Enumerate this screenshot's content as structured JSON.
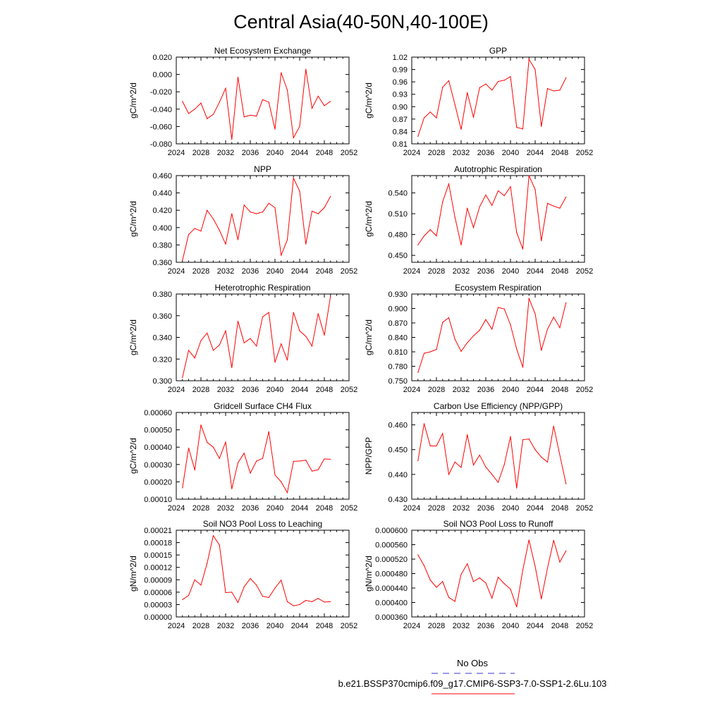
{
  "figure": {
    "title": "Central Asia(40-50N,40-100E)",
    "line_color": "#ff0000",
    "obs_color": "#3333cc"
  },
  "legend": {
    "obs_label": "No Obs",
    "model_label": "b.e21.BSSP370cmip6.f09_g17.CMIP6-SSP3-7.0-SSP1-2.6Lu.103"
  },
  "chart_data": [
    {
      "type": "line",
      "title": "Net Ecosystem Exchange",
      "ylabel": "gC/m^2/d",
      "xlim": [
        2024,
        2052
      ],
      "xticks": [
        2024,
        2028,
        2032,
        2036,
        2040,
        2044,
        2048,
        2052
      ],
      "ylim": [
        -0.08,
        0.02
      ],
      "yticks": [
        "-0.080",
        "-0.060",
        "-0.040",
        "-0.020",
        "0.000",
        "0.020"
      ],
      "x": [
        2025,
        2026,
        2027,
        2028,
        2029,
        2030,
        2031,
        2032,
        2033,
        2034,
        2035,
        2036,
        2037,
        2038,
        2039,
        2040,
        2041,
        2042,
        2043,
        2044,
        2045,
        2046,
        2047,
        2048,
        2049
      ],
      "values": [
        -0.031,
        -0.045,
        -0.04,
        -0.033,
        -0.051,
        -0.046,
        -0.032,
        -0.016,
        -0.075,
        -0.003,
        -0.049,
        -0.047,
        -0.048,
        -0.029,
        -0.032,
        -0.063,
        0.002,
        -0.018,
        -0.073,
        -0.06,
        0.006,
        -0.039,
        -0.025,
        -0.036,
        -0.031
      ]
    },
    {
      "type": "line",
      "title": "GPP",
      "ylabel": "gC/m^2/d",
      "xlim": [
        2024,
        2052
      ],
      "xticks": [
        2024,
        2028,
        2032,
        2036,
        2040,
        2044,
        2048,
        2052
      ],
      "ylim": [
        0.81,
        1.02
      ],
      "yticks": [
        "0.81",
        "0.84",
        "0.87",
        "0.90",
        "0.93",
        "0.96",
        "0.99",
        "1.02"
      ],
      "x": [
        2025,
        2026,
        2027,
        2028,
        2029,
        2030,
        2031,
        2032,
        2033,
        2034,
        2035,
        2036,
        2037,
        2038,
        2039,
        2040,
        2041,
        2042,
        2043,
        2044,
        2045,
        2046,
        2047,
        2048,
        2049
      ],
      "values": [
        0.828,
        0.873,
        0.887,
        0.873,
        0.947,
        0.963,
        0.905,
        0.845,
        0.934,
        0.874,
        0.946,
        0.955,
        0.94,
        0.961,
        0.964,
        0.973,
        0.85,
        0.846,
        1.015,
        0.99,
        0.852,
        0.944,
        0.938,
        0.94,
        0.97
      ]
    },
    {
      "type": "line",
      "title": "NPP",
      "ylabel": "gC/m^2/d",
      "xlim": [
        2024,
        2052
      ],
      "xticks": [
        2024,
        2028,
        2032,
        2036,
        2040,
        2044,
        2048,
        2052
      ],
      "ylim": [
        0.36,
        0.46
      ],
      "yticks": [
        "0.360",
        "0.380",
        "0.400",
        "0.420",
        "0.440",
        "0.460"
      ],
      "x": [
        2025,
        2026,
        2027,
        2028,
        2029,
        2030,
        2031,
        2032,
        2033,
        2034,
        2035,
        2036,
        2037,
        2038,
        2039,
        2040,
        2041,
        2042,
        2043,
        2044,
        2045,
        2046,
        2047,
        2048,
        2049
      ],
      "values": [
        0.362,
        0.392,
        0.399,
        0.396,
        0.42,
        0.41,
        0.397,
        0.381,
        0.416,
        0.386,
        0.426,
        0.418,
        0.416,
        0.418,
        0.428,
        0.423,
        0.368,
        0.386,
        0.457,
        0.442,
        0.381,
        0.419,
        0.416,
        0.423,
        0.436
      ]
    },
    {
      "type": "line",
      "title": "Autotrophic Respiration",
      "ylabel": "gC/m^2/d",
      "xlim": [
        2024,
        2052
      ],
      "xticks": [
        2024,
        2028,
        2032,
        2036,
        2040,
        2044,
        2048,
        2052
      ],
      "ylim": [
        0.44,
        0.565
      ],
      "yticks": [
        "0.450",
        "0.480",
        "0.510",
        "0.540"
      ],
      "x": [
        2025,
        2026,
        2027,
        2028,
        2029,
        2030,
        2031,
        2032,
        2033,
        2034,
        2035,
        2036,
        2037,
        2038,
        2039,
        2040,
        2041,
        2042,
        2043,
        2044,
        2045,
        2046,
        2047,
        2048,
        2049
      ],
      "values": [
        0.465,
        0.478,
        0.487,
        0.478,
        0.527,
        0.553,
        0.505,
        0.465,
        0.518,
        0.49,
        0.52,
        0.537,
        0.522,
        0.543,
        0.536,
        0.549,
        0.483,
        0.459,
        0.565,
        0.545,
        0.471,
        0.525,
        0.521,
        0.518,
        0.534
      ]
    },
    {
      "type": "line",
      "title": "Heterotrophic Respiration",
      "ylabel": "gC/m^2/d",
      "xlim": [
        2024,
        2052
      ],
      "xticks": [
        2024,
        2028,
        2032,
        2036,
        2040,
        2044,
        2048,
        2052
      ],
      "ylim": [
        0.3,
        0.38
      ],
      "yticks": [
        "0.300",
        "0.320",
        "0.340",
        "0.360",
        "0.380"
      ],
      "x": [
        2025,
        2026,
        2027,
        2028,
        2029,
        2030,
        2031,
        2032,
        2033,
        2034,
        2035,
        2036,
        2037,
        2038,
        2039,
        2040,
        2041,
        2042,
        2043,
        2044,
        2045,
        2046,
        2047,
        2048,
        2049
      ],
      "values": [
        0.303,
        0.328,
        0.321,
        0.337,
        0.344,
        0.328,
        0.333,
        0.346,
        0.312,
        0.355,
        0.335,
        0.339,
        0.332,
        0.359,
        0.363,
        0.317,
        0.334,
        0.319,
        0.363,
        0.346,
        0.341,
        0.332,
        0.362,
        0.342,
        0.378
      ]
    },
    {
      "type": "line",
      "title": "Ecosystem Respiration",
      "ylabel": "gC/m^2/d",
      "xlim": [
        2024,
        2052
      ],
      "xticks": [
        2024,
        2028,
        2032,
        2036,
        2040,
        2044,
        2048,
        2052
      ],
      "ylim": [
        0.75,
        0.93
      ],
      "yticks": [
        "0.750",
        "0.780",
        "0.810",
        "0.840",
        "0.870",
        "0.900",
        "0.930"
      ],
      "x": [
        2025,
        2026,
        2027,
        2028,
        2029,
        2030,
        2031,
        2032,
        2033,
        2034,
        2035,
        2036,
        2037,
        2038,
        2039,
        2040,
        2041,
        2042,
        2043,
        2044,
        2045,
        2046,
        2047,
        2048,
        2049
      ],
      "values": [
        0.767,
        0.807,
        0.81,
        0.815,
        0.871,
        0.881,
        0.836,
        0.811,
        0.829,
        0.843,
        0.855,
        0.877,
        0.857,
        0.902,
        0.899,
        0.866,
        0.816,
        0.778,
        0.921,
        0.889,
        0.813,
        0.857,
        0.882,
        0.86,
        0.912
      ]
    },
    {
      "type": "line",
      "title": "Gridcell Surface CH4 Flux",
      "ylabel": "gC/m^2/d",
      "xlim": [
        2024,
        2052
      ],
      "xticks": [
        2024,
        2028,
        2032,
        2036,
        2040,
        2044,
        2048,
        2052
      ],
      "ylim": [
        0.0001,
        0.0006
      ],
      "yticks": [
        "0.00010",
        "0.00020",
        "0.00030",
        "0.00040",
        "0.00050",
        "0.00060"
      ],
      "x": [
        2025,
        2026,
        2027,
        2028,
        2029,
        2030,
        2031,
        2032,
        2033,
        2034,
        2035,
        2036,
        2037,
        2038,
        2039,
        2040,
        2041,
        2042,
        2043,
        2044,
        2045,
        2046,
        2047,
        2048,
        2049
      ],
      "values": [
        0.000165,
        0.000395,
        0.000268,
        0.000528,
        0.000428,
        0.0004,
        0.000335,
        0.00043,
        0.00016,
        0.00031,
        0.000365,
        0.00025,
        0.00032,
        0.000335,
        0.00049,
        0.00024,
        0.0002,
        0.000138,
        0.000318,
        0.00032,
        0.000325,
        0.000262,
        0.00027,
        0.000332,
        0.00033
      ]
    },
    {
      "type": "line",
      "title": "Carbon Use Efficiency (NPP/GPP)",
      "ylabel": "NPP/GPP",
      "xlim": [
        2024,
        2052
      ],
      "xticks": [
        2024,
        2028,
        2032,
        2036,
        2040,
        2044,
        2048,
        2052
      ],
      "ylim": [
        0.43,
        0.465
      ],
      "yticks": [
        "0.430",
        "0.440",
        "0.450",
        "0.460"
      ],
      "x": [
        2025,
        2026,
        2027,
        2028,
        2029,
        2030,
        2031,
        2032,
        2033,
        2034,
        2035,
        2036,
        2037,
        2038,
        2039,
        2040,
        2041,
        2042,
        2043,
        2044,
        2045,
        2046,
        2047,
        2048,
        2049
      ],
      "values": [
        0.4455,
        0.4605,
        0.4515,
        0.4515,
        0.4565,
        0.44,
        0.445,
        0.4428,
        0.456,
        0.4438,
        0.4478,
        0.443,
        0.44,
        0.4368,
        0.444,
        0.4553,
        0.4345,
        0.454,
        0.4543,
        0.45,
        0.447,
        0.445,
        0.4595,
        0.4478,
        0.4362
      ]
    },
    {
      "type": "line",
      "title": "Soil NO3 Pool Loss to Leaching",
      "ylabel": "gN/m^2/d",
      "xlim": [
        2024,
        2052
      ],
      "xticks": [
        2024,
        2028,
        2032,
        2036,
        2040,
        2044,
        2048,
        2052
      ],
      "ylim": [
        0.0,
        0.00021
      ],
      "yticks": [
        "0.00000",
        "0.00003",
        "0.00006",
        "0.00009",
        "0.00012",
        "0.00015",
        "0.00018",
        "0.00021"
      ],
      "x": [
        2025,
        2026,
        2027,
        2028,
        2029,
        2030,
        2031,
        2032,
        2033,
        2034,
        2035,
        2036,
        2037,
        2038,
        2039,
        2040,
        2041,
        2042,
        2043,
        2044,
        2045,
        2046,
        2047,
        2048,
        2049
      ],
      "values": [
        4.2e-05,
        5.2e-05,
        9e-05,
        7.7e-05,
        0.00013,
        0.000197,
        0.000174,
        5.9e-05,
        6e-05,
        3.5e-05,
        7.3e-05,
        9.3e-05,
        7.7e-05,
        5e-05,
        4.7e-05,
        7e-05,
        8.9e-05,
        3.7e-05,
        2.7e-05,
        3e-05,
        4e-05,
        3.7e-05,
        4.5e-05,
        3.6e-05,
        3.7e-05
      ]
    },
    {
      "type": "line",
      "title": "Soil NO3 Pool Loss to Runoff",
      "ylabel": "gN/m^2/d",
      "xlim": [
        2024,
        2052
      ],
      "xticks": [
        2024,
        2028,
        2032,
        2036,
        2040,
        2044,
        2048,
        2052
      ],
      "ylim": [
        0.00036,
        0.0006
      ],
      "yticks": [
        "0.000360",
        "0.000400",
        "0.000440",
        "0.000480",
        "0.000520",
        "0.000560",
        "0.000600"
      ],
      "x": [
        2025,
        2026,
        2027,
        2028,
        2029,
        2030,
        2031,
        2032,
        2033,
        2034,
        2035,
        2036,
        2037,
        2038,
        2039,
        2040,
        2041,
        2042,
        2043,
        2044,
        2045,
        2046,
        2047,
        2048,
        2049
      ],
      "values": [
        0.000532,
        0.000502,
        0.000462,
        0.000442,
        0.000458,
        0.000414,
        0.000403,
        0.000478,
        0.000507,
        0.000458,
        0.000468,
        0.000454,
        0.000412,
        0.00047,
        0.000452,
        0.000437,
        0.000388,
        0.00049,
        0.000573,
        0.0005,
        0.00041,
        0.000495,
        0.000572,
        0.000512,
        0.000543
      ]
    }
  ]
}
